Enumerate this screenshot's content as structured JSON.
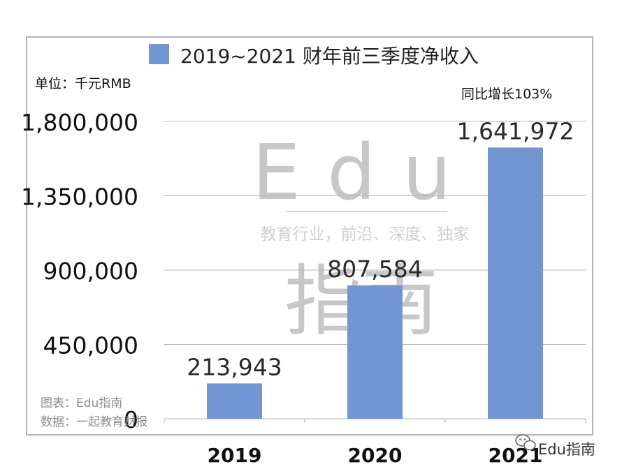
{
  "chart_data": {
    "type": "bar",
    "title": "2019~2021 财年前三季度净收入",
    "legend_label": "2019~2021 财年前三季度净收入",
    "unit_note": "单位：千元RMB",
    "growth_annotation": "同比增长103%",
    "categories": [
      "2019",
      "2020",
      "2021"
    ],
    "values": [
      213943,
      807584,
      1641972
    ],
    "value_labels": [
      "213,943",
      "807,584",
      "1,641,972"
    ],
    "y_ticks": [
      0,
      450000,
      900000,
      1350000,
      1800000
    ],
    "y_tick_labels": [
      "0",
      "450,000",
      "900,000",
      "1,350,000",
      "1,800,000"
    ],
    "ylim": [
      0,
      1800000
    ],
    "bar_color": "#7396d2",
    "grid": true,
    "legend_position": "top"
  },
  "watermark": {
    "brand": "Edu",
    "slogan": "教育行业，前沿、深度、独家",
    "chinese": "指南"
  },
  "footer": {
    "chart_source": "图表：Edu指南",
    "data_source": "数据：一起教育财报",
    "account": "Edu指南",
    "account_icon": "wechat-icon"
  }
}
